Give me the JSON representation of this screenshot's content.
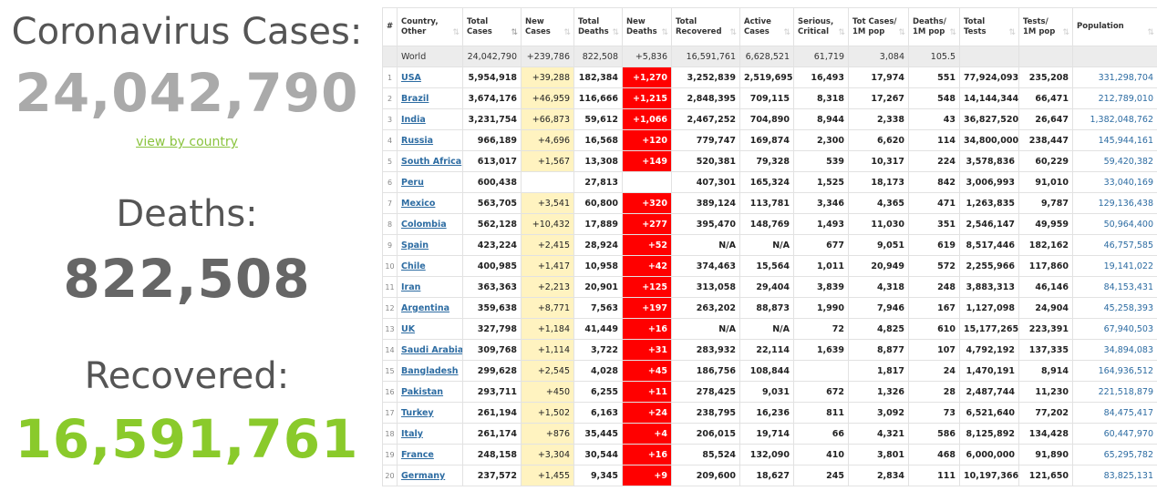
{
  "summary": {
    "cases_label": "Coronavirus Cases:",
    "cases_value": "24,042,790",
    "view_by_country": "view by country",
    "deaths_label": "Deaths:",
    "deaths_value": "822,508",
    "recovered_label": "Recovered:",
    "recovered_value": "16,591,761"
  },
  "colors": {
    "recovered_green": "#8aca2b",
    "new_cases_bg": "#fff3c0",
    "new_deaths_bg": "#ff0000",
    "link_blue": "#2d6ca2"
  },
  "table": {
    "headers": [
      [
        "#",
        ""
      ],
      [
        "Country,",
        "Other"
      ],
      [
        "Total",
        "Cases"
      ],
      [
        "New",
        "Cases"
      ],
      [
        "Total",
        "Deaths"
      ],
      [
        "New",
        "Deaths"
      ],
      [
        "Total",
        "Recovered"
      ],
      [
        "Active",
        "Cases"
      ],
      [
        "Serious,",
        "Critical"
      ],
      [
        "Tot Cases/",
        "1M pop"
      ],
      [
        "Deaths/",
        "1M pop"
      ],
      [
        "Total",
        "Tests"
      ],
      [
        "Tests/",
        "1M pop"
      ],
      [
        "Population",
        ""
      ]
    ],
    "world": [
      "",
      "World",
      "24,042,790",
      "+239,786",
      "822,508",
      "+5,836",
      "16,591,761",
      "6,628,521",
      "61,719",
      "3,084",
      "105.5",
      "",
      "",
      ""
    ],
    "rows": [
      [
        "1",
        "USA",
        "5,954,918",
        "+39,288",
        "182,384",
        "+1,270",
        "3,252,839",
        "2,519,695",
        "16,493",
        "17,974",
        "551",
        "77,924,093",
        "235,208",
        "331,298,704"
      ],
      [
        "2",
        "Brazil",
        "3,674,176",
        "+46,959",
        "116,666",
        "+1,215",
        "2,848,395",
        "709,115",
        "8,318",
        "17,267",
        "548",
        "14,144,344",
        "66,471",
        "212,789,010"
      ],
      [
        "3",
        "India",
        "3,231,754",
        "+66,873",
        "59,612",
        "+1,066",
        "2,467,252",
        "704,890",
        "8,944",
        "2,338",
        "43",
        "36,827,520",
        "26,647",
        "1,382,048,762"
      ],
      [
        "4",
        "Russia",
        "966,189",
        "+4,696",
        "16,568",
        "+120",
        "779,747",
        "169,874",
        "2,300",
        "6,620",
        "114",
        "34,800,000",
        "238,447",
        "145,944,161"
      ],
      [
        "5",
        "South Africa",
        "613,017",
        "+1,567",
        "13,308",
        "+149",
        "520,381",
        "79,328",
        "539",
        "10,317",
        "224",
        "3,578,836",
        "60,229",
        "59,420,382"
      ],
      [
        "6",
        "Peru",
        "600,438",
        "",
        "27,813",
        "",
        "407,301",
        "165,324",
        "1,525",
        "18,173",
        "842",
        "3,006,993",
        "91,010",
        "33,040,169"
      ],
      [
        "7",
        "Mexico",
        "563,705",
        "+3,541",
        "60,800",
        "+320",
        "389,124",
        "113,781",
        "3,346",
        "4,365",
        "471",
        "1,263,835",
        "9,787",
        "129,136,438"
      ],
      [
        "8",
        "Colombia",
        "562,128",
        "+10,432",
        "17,889",
        "+277",
        "395,470",
        "148,769",
        "1,493",
        "11,030",
        "351",
        "2,546,147",
        "49,959",
        "50,964,400"
      ],
      [
        "9",
        "Spain",
        "423,224",
        "+2,415",
        "28,924",
        "+52",
        "N/A",
        "N/A",
        "677",
        "9,051",
        "619",
        "8,517,446",
        "182,162",
        "46,757,585"
      ],
      [
        "10",
        "Chile",
        "400,985",
        "+1,417",
        "10,958",
        "+42",
        "374,463",
        "15,564",
        "1,011",
        "20,949",
        "572",
        "2,255,966",
        "117,860",
        "19,141,022"
      ],
      [
        "11",
        "Iran",
        "363,363",
        "+2,213",
        "20,901",
        "+125",
        "313,058",
        "29,404",
        "3,839",
        "4,318",
        "248",
        "3,883,313",
        "46,146",
        "84,153,431"
      ],
      [
        "12",
        "Argentina",
        "359,638",
        "+8,771",
        "7,563",
        "+197",
        "263,202",
        "88,873",
        "1,990",
        "7,946",
        "167",
        "1,127,098",
        "24,904",
        "45,258,393"
      ],
      [
        "13",
        "UK",
        "327,798",
        "+1,184",
        "41,449",
        "+16",
        "N/A",
        "N/A",
        "72",
        "4,825",
        "610",
        "15,177,265",
        "223,391",
        "67,940,503"
      ],
      [
        "14",
        "Saudi Arabia",
        "309,768",
        "+1,114",
        "3,722",
        "+31",
        "283,932",
        "22,114",
        "1,639",
        "8,877",
        "107",
        "4,792,192",
        "137,335",
        "34,894,083"
      ],
      [
        "15",
        "Bangladesh",
        "299,628",
        "+2,545",
        "4,028",
        "+45",
        "186,756",
        "108,844",
        "",
        "1,817",
        "24",
        "1,470,191",
        "8,914",
        "164,936,512"
      ],
      [
        "16",
        "Pakistan",
        "293,711",
        "+450",
        "6,255",
        "+11",
        "278,425",
        "9,031",
        "672",
        "1,326",
        "28",
        "2,487,744",
        "11,230",
        "221,518,879"
      ],
      [
        "17",
        "Turkey",
        "261,194",
        "+1,502",
        "6,163",
        "+24",
        "238,795",
        "16,236",
        "811",
        "3,092",
        "73",
        "6,521,640",
        "77,202",
        "84,475,417"
      ],
      [
        "18",
        "Italy",
        "261,174",
        "+876",
        "35,445",
        "+4",
        "206,015",
        "19,714",
        "66",
        "4,321",
        "586",
        "8,125,892",
        "134,428",
        "60,447,970"
      ],
      [
        "19",
        "France",
        "248,158",
        "+3,304",
        "30,544",
        "+16",
        "85,524",
        "132,090",
        "410",
        "3,801",
        "468",
        "6,000,000",
        "91,890",
        "65,295,782"
      ],
      [
        "20",
        "Germany",
        "237,572",
        "+1,455",
        "9,345",
        "+9",
        "209,600",
        "18,627",
        "245",
        "2,834",
        "111",
        "10,197,366",
        "121,650",
        "83,825,131"
      ]
    ]
  }
}
